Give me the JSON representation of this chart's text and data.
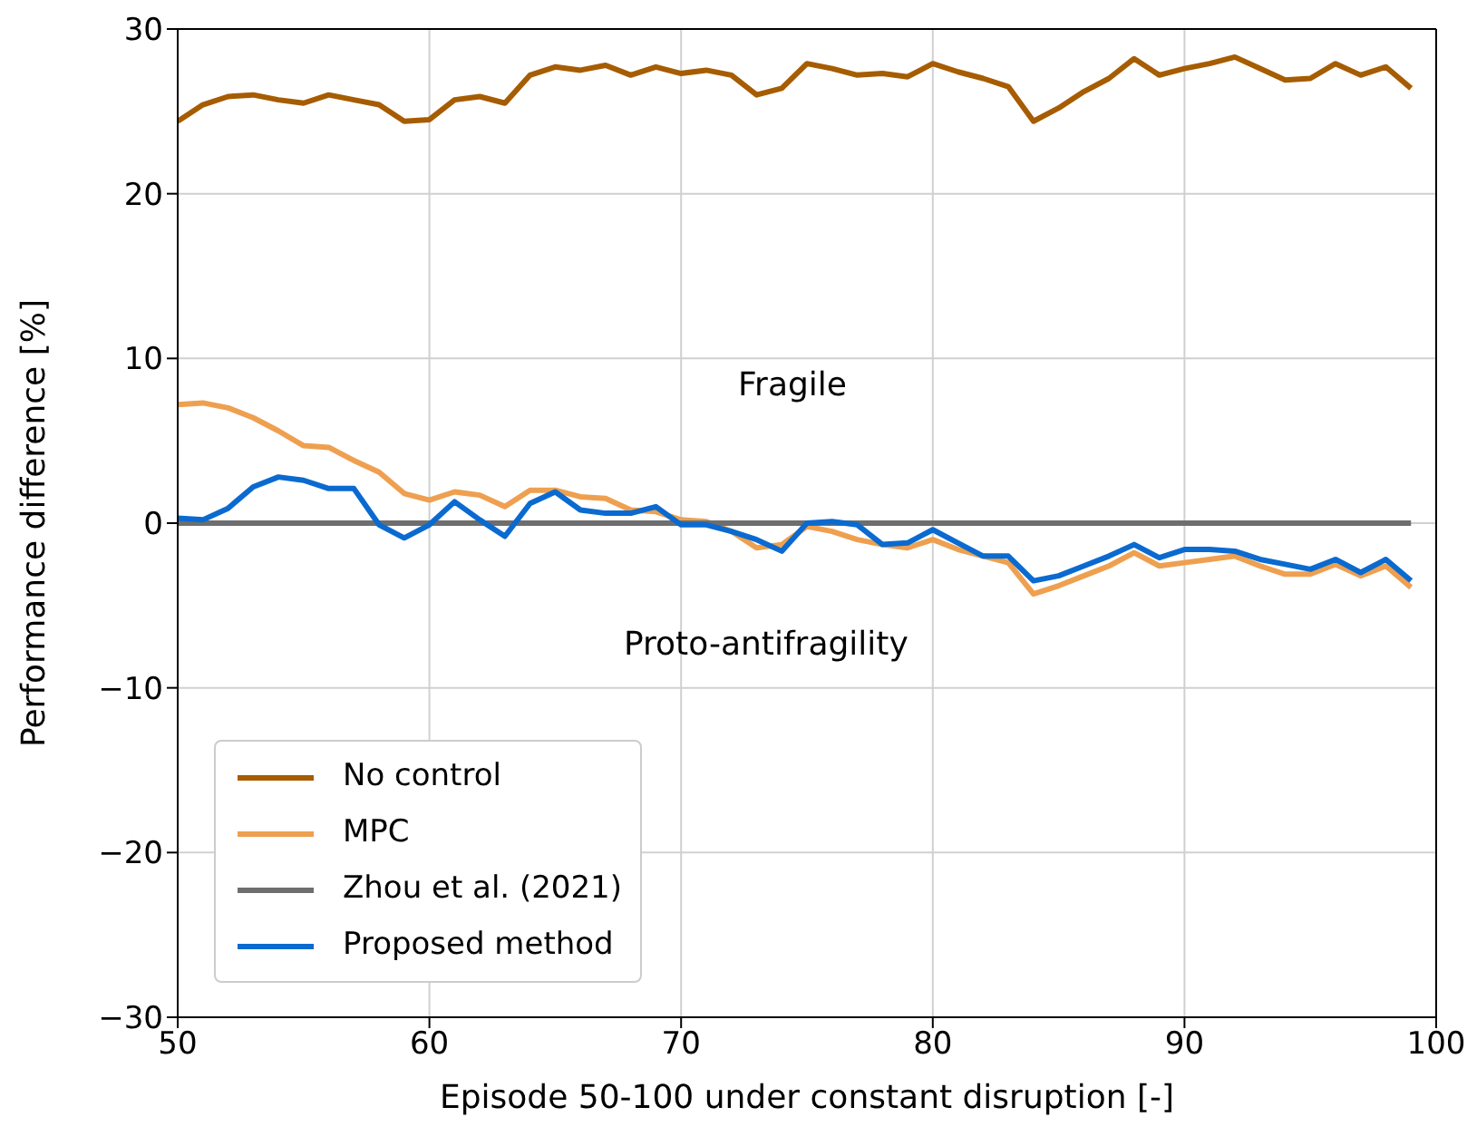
{
  "chart_data": {
    "type": "line",
    "xlabel": "Episode 50-100 under constant disruption [-]",
    "ylabel": "Performance difference [%]",
    "x": [
      50,
      51,
      52,
      53,
      54,
      55,
      56,
      57,
      58,
      59,
      60,
      61,
      62,
      63,
      64,
      65,
      66,
      67,
      68,
      69,
      70,
      71,
      72,
      73,
      74,
      75,
      76,
      77,
      78,
      79,
      80,
      81,
      82,
      83,
      84,
      85,
      86,
      87,
      88,
      89,
      90,
      91,
      92,
      93,
      94,
      95,
      96,
      97,
      98,
      99
    ],
    "series": [
      {
        "name": "No control",
        "color": "#a65c00",
        "values": [
          24.4,
          25.4,
          25.9,
          26.0,
          25.7,
          25.5,
          26.0,
          25.7,
          25.4,
          24.4,
          24.5,
          25.7,
          25.9,
          25.5,
          27.2,
          27.7,
          27.5,
          27.8,
          27.2,
          27.7,
          27.3,
          27.5,
          27.2,
          26.0,
          26.4,
          27.9,
          27.6,
          27.2,
          27.3,
          27.1,
          27.9,
          27.4,
          27.0,
          26.5,
          24.4,
          25.2,
          26.2,
          27.0,
          28.2,
          27.2,
          27.6,
          27.9,
          28.3,
          27.6,
          26.9,
          27.0,
          27.9,
          27.2,
          27.7,
          26.4
        ]
      },
      {
        "name": "MPC",
        "color": "#eea050",
        "values": [
          7.2,
          7.3,
          7.0,
          6.4,
          5.6,
          4.7,
          4.6,
          3.8,
          3.1,
          1.8,
          1.4,
          1.9,
          1.7,
          1.0,
          2.0,
          2.0,
          1.6,
          1.5,
          0.8,
          0.7,
          0.2,
          0.1,
          -0.5,
          -1.5,
          -1.3,
          -0.2,
          -0.5,
          -1.0,
          -1.3,
          -1.5,
          -1.0,
          -1.6,
          -2.0,
          -2.4,
          -4.3,
          -3.8,
          -3.2,
          -2.6,
          -1.8,
          -2.6,
          -2.4,
          -2.2,
          -2.0,
          -2.6,
          -3.1,
          -3.1,
          -2.5,
          -3.2,
          -2.6,
          -3.9
        ]
      },
      {
        "name": "Zhou et al. (2021)",
        "color": "#6e6e6e",
        "x": [
          50,
          99
        ],
        "values": [
          0,
          0
        ]
      },
      {
        "name": "Proposed method",
        "color": "#0a6ad0",
        "values": [
          0.3,
          0.2,
          0.9,
          2.2,
          2.8,
          2.6,
          2.1,
          2.1,
          -0.1,
          -0.9,
          -0.1,
          1.3,
          0.2,
          -0.8,
          1.2,
          1.9,
          0.8,
          0.6,
          0.6,
          1.0,
          -0.1,
          -0.1,
          -0.5,
          -1.0,
          -1.7,
          0.0,
          0.1,
          -0.1,
          -1.3,
          -1.2,
          -0.4,
          -1.2,
          -2.0,
          -2.0,
          -3.5,
          -3.2,
          -2.6,
          -2.0,
          -1.3,
          -2.1,
          -1.6,
          -1.6,
          -1.7,
          -2.2,
          -2.5,
          -2.8,
          -2.2,
          -3.0,
          -2.2,
          -3.5
        ]
      }
    ],
    "xlim": [
      50,
      100
    ],
    "xticks": [
      50,
      60,
      70,
      80,
      90,
      100
    ],
    "ylim": [
      -30,
      30
    ],
    "yticks": [
      {
        "value": -30,
        "label": "−30"
      },
      {
        "value": -20,
        "label": "−20"
      },
      {
        "value": -10,
        "label": "−10"
      },
      0,
      10,
      20,
      30
    ],
    "annotations": [
      "Fragile",
      "Proto-antifragility"
    ],
    "grid": true,
    "legend": "bottom left",
    "line_style": "solid"
  }
}
